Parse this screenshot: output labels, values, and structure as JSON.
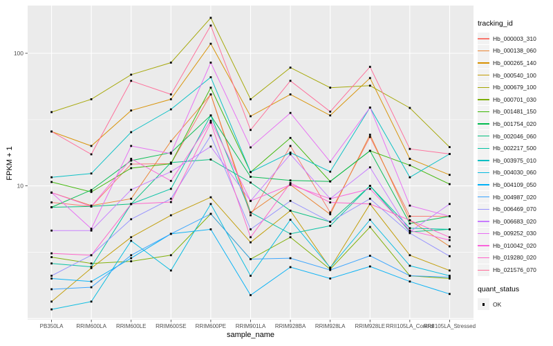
{
  "figure": {
    "background": "#FFFFFF",
    "panel_background": "#EBEBEB",
    "grid_color": "#FFFFFF",
    "axis_text_color": "#4D4D4D",
    "axis_title_color": "#000000",
    "tick_color": "#333333",
    "point_color": "#000000"
  },
  "legend": {
    "title": "tracking_id"
  },
  "legend2": {
    "title": "quant_status",
    "items": [
      {
        "label": "OK",
        "shape": "black-square"
      }
    ]
  },
  "chart_data": {
    "type": "line",
    "title": "",
    "xlabel": "sample_name",
    "ylabel": "FPKM + 1",
    "y_scale": "log10",
    "y_ticks": [
      {
        "value": 100,
        "label": "100"
      },
      {
        "value": 10,
        "label": "10"
      }
    ],
    "y_minor_gridlines": [
      31.6,
      3.16
    ],
    "y_major_gridlines": [
      100,
      10,
      1
    ],
    "ylim": [
      1,
      230
    ],
    "grid": true,
    "legend_position": "right",
    "point_marker": "square",
    "categories": [
      "PB350LA",
      "RRIM600LA",
      "RRIM600LE",
      "RRIM600SE",
      "RRIM600PE",
      "RRIM901LA",
      "RRIM928BA",
      "RRIM928LA",
      "RRIM928LE",
      "RRII105LA_Control",
      "RRII105LA_Stressed"
    ],
    "series": [
      {
        "name": "Hb_000003_310",
        "color": "#F8766D",
        "values": [
          7.5,
          7.0,
          14.6,
          14.7,
          49,
          6.0,
          20,
          6.3,
          23.4,
          5.9,
          5.9
        ]
      },
      {
        "name": "Hb_000138_060",
        "color": "#EA8331",
        "values": [
          8.9,
          7.1,
          8.0,
          21.7,
          49,
          6.3,
          10.2,
          6.1,
          24.3,
          5.5,
          3.5
        ]
      },
      {
        "name": "Hb_000265_140",
        "color": "#D89000",
        "values": [
          25.7,
          20,
          37,
          45,
          118,
          33.5,
          49,
          34,
          65,
          16,
          12.1
        ]
      },
      {
        "name": "Hb_000540_100",
        "color": "#C09B00",
        "values": [
          1.34,
          2.4,
          4.1,
          6.0,
          8.2,
          3.75,
          6.5,
          2.4,
          7.3,
          3.0,
          2.3
        ]
      },
      {
        "name": "Hb_000679_100",
        "color": "#A3A500",
        "values": [
          36,
          45,
          69,
          85,
          185,
          45,
          78,
          55,
          57,
          38.7,
          19.6
        ]
      },
      {
        "name": "Hb_000701_030",
        "color": "#7CAE00",
        "values": [
          2.9,
          2.6,
          2.7,
          3.0,
          6.15,
          2.8,
          4.1,
          2.35,
          4.9,
          2.1,
          2.0
        ]
      },
      {
        "name": "Hb_001481_150",
        "color": "#39B600",
        "values": [
          10.7,
          9.0,
          13.6,
          14.7,
          55,
          12.7,
          23,
          10.8,
          18.4,
          14.3,
          10.3
        ]
      },
      {
        "name": "Hb_001754_020",
        "color": "#00BB4E",
        "values": [
          6.9,
          9.3,
          15.5,
          17.8,
          34,
          11.7,
          11,
          10.8,
          18.4,
          5.2,
          5.9
        ]
      },
      {
        "name": "Hb_002046_060",
        "color": "#00BF7D",
        "values": [
          6.9,
          7.0,
          7.3,
          15,
          15.8,
          10.6,
          6.5,
          5.35,
          10,
          4.5,
          4.7
        ]
      },
      {
        "name": "Hb_002217_500",
        "color": "#00C1A3",
        "values": [
          2.6,
          2.45,
          7.3,
          9.5,
          34,
          6.3,
          4.35,
          5.0,
          10,
          4.8,
          4.7
        ]
      },
      {
        "name": "Hb_003975_010",
        "color": "#00BFC4",
        "values": [
          11.6,
          12.4,
          25.4,
          37.8,
          66,
          12.7,
          17.8,
          12.8,
          39,
          11.6,
          17.4
        ]
      },
      {
        "name": "Hb_004030_060",
        "color": "#00BAE0",
        "values": [
          1.17,
          1.34,
          3.85,
          2.3,
          7.3,
          2.1,
          5.55,
          2.42,
          5.55,
          2.5,
          2.1
        ]
      },
      {
        "name": "Hb_004109_050",
        "color": "#00B0F6",
        "values": [
          2.0,
          1.9,
          2.85,
          4.35,
          4.7,
          1.5,
          2.44,
          2.0,
          2.47,
          1.9,
          1.53
        ]
      },
      {
        "name": "Hb_004987_020",
        "color": "#35A2FF",
        "values": [
          1.66,
          1.72,
          3.0,
          4.35,
          6.15,
          2.8,
          2.85,
          2.32,
          2.97,
          2.1,
          2.05
        ]
      },
      {
        "name": "Hb_006469_070",
        "color": "#9590FF",
        "values": [
          2.1,
          3.0,
          5.6,
          8.0,
          24,
          4.7,
          7.7,
          5.35,
          8.0,
          4.4,
          2.95
        ]
      },
      {
        "name": "Hb_006683_020",
        "color": "#C77CFF",
        "values": [
          4.6,
          4.6,
          9.35,
          12.8,
          19.8,
          7.7,
          17.3,
          8.0,
          13.8,
          4.5,
          7.3
        ]
      },
      {
        "name": "Hb_009252_030",
        "color": "#E76BF3",
        "values": [
          8.9,
          4.75,
          20,
          17.5,
          85,
          19.5,
          35.5,
          15.2,
          39,
          7.1,
          5.9
        ]
      },
      {
        "name": "Hb_010042_020",
        "color": "#FA62DB",
        "values": [
          8.9,
          7.0,
          16,
          10.9,
          31,
          7.7,
          10.2,
          8.0,
          9.5,
          4.6,
          3.9
        ]
      },
      {
        "name": "Hb_019280_020",
        "color": "#FF61C9",
        "values": [
          3.1,
          3.0,
          7.3,
          7.55,
          30,
          4.1,
          10.5,
          7.5,
          7.3,
          5.5,
          4.1
        ]
      },
      {
        "name": "Hb_021576_070",
        "color": "#FF6A98",
        "values": [
          25.7,
          17.3,
          62,
          49,
          162,
          26.4,
          62,
          36.3,
          79,
          19,
          17.4
        ]
      }
    ],
    "quant_status": "OK"
  }
}
